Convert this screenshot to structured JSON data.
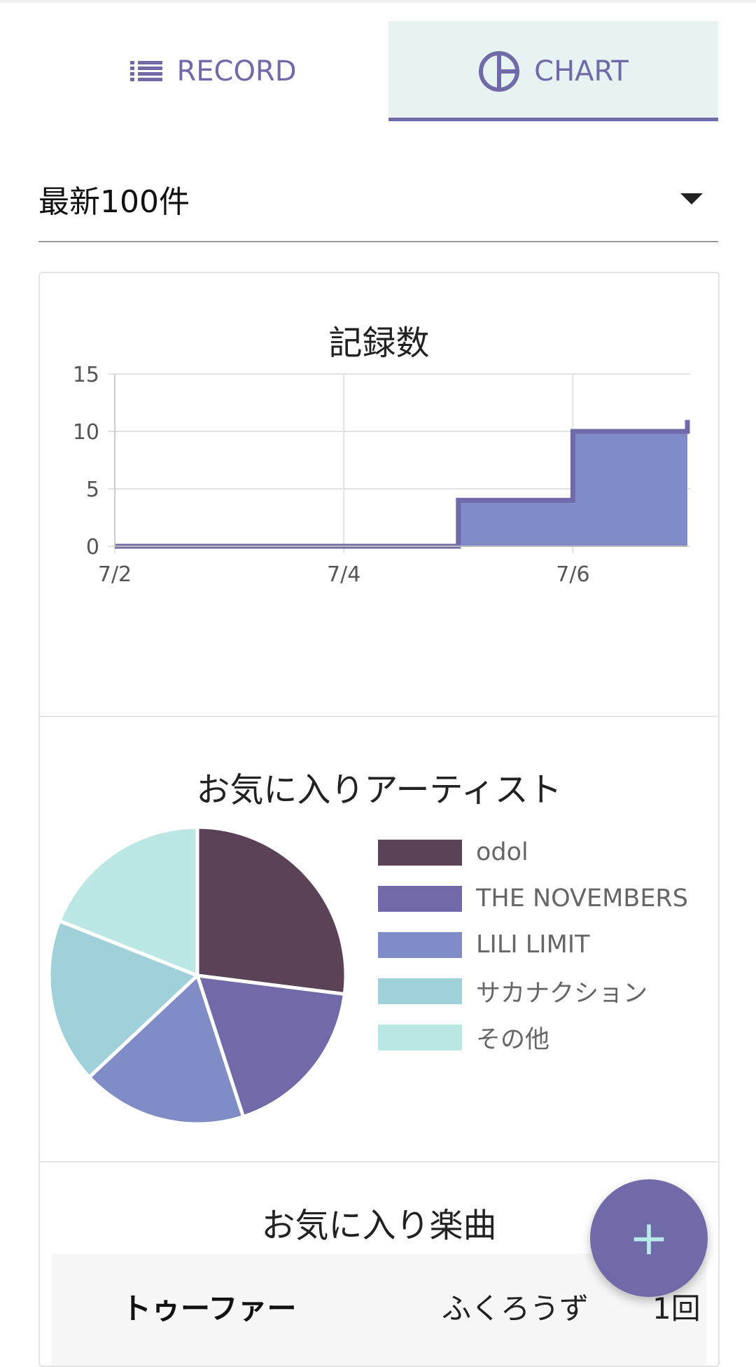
{
  "tabs": [
    {
      "label": "RECORD",
      "icon": "list-icon",
      "selected": false
    },
    {
      "label": "CHART",
      "icon": "pie-chart-icon",
      "selected": true
    }
  ],
  "filter": {
    "selected": "最新100件"
  },
  "charts": {
    "records_title": "記録数",
    "favorite_artists_title": "お気に入りアーティスト",
    "favorite_songs_title": "お気に入り楽曲"
  },
  "chart_data": [
    {
      "type": "area",
      "title": "記録数",
      "step": true,
      "x": [
        "7/2",
        "7/3",
        "7/4",
        "7/5",
        "7/6",
        "7/7"
      ],
      "y": [
        0,
        0,
        0,
        4,
        10,
        11
      ],
      "x_ticks": [
        "7/2",
        "7/4",
        "7/6"
      ],
      "y_ticks": [
        0,
        5,
        10,
        15
      ],
      "ylim": [
        0,
        15
      ],
      "grid": true,
      "colors": {
        "fill": "#7f8cc5",
        "line": "#716aa8"
      }
    },
    {
      "type": "pie",
      "title": "お気に入りアーティスト",
      "labels": [
        "odol",
        "THE NOVEMBERS",
        "LILI LIMIT",
        "サカナクション",
        "その他"
      ],
      "values": [
        27,
        18,
        18,
        18,
        19
      ],
      "colors": [
        "#5b4257",
        "#716aa8",
        "#7f8cc5",
        "#a0d0da",
        "#bbe7e5"
      ],
      "legend": "right"
    }
  ],
  "favorite_songs": [
    {
      "title": "トゥーファー",
      "artist": "ふくろうず",
      "count": "1回"
    }
  ],
  "fab": {
    "label": "+"
  }
}
